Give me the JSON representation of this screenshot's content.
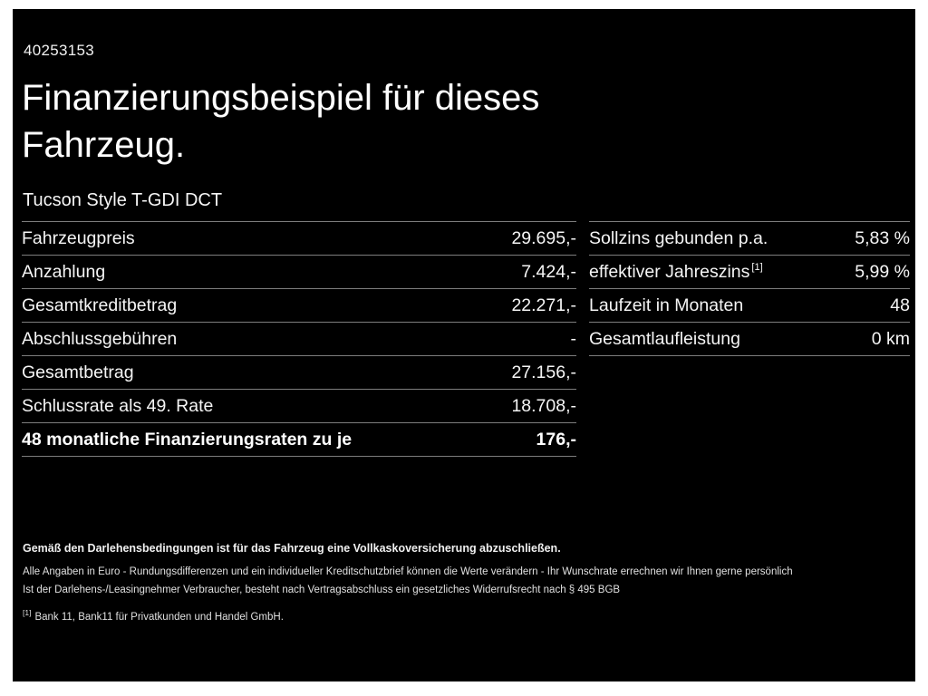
{
  "page": {
    "id_number": "40253153",
    "title_line1": "Finanzierungsbeispiel für dieses",
    "title_line2": "Fahrzeug.",
    "vehicle_model": "Tucson Style T-GDI DCT"
  },
  "left_table": {
    "rows": [
      {
        "label": "Fahrzeugpreis",
        "value": "29.695,-"
      },
      {
        "label": "Anzahlung",
        "value": "7.424,-"
      },
      {
        "label": "Gesamtkreditbetrag",
        "value": "22.271,-"
      },
      {
        "label": "Abschlussgebühren",
        "value": "-"
      },
      {
        "label": "Gesamtbetrag",
        "value": "27.156,-"
      },
      {
        "label": "Schlussrate als 49. Rate",
        "value": "18.708,-"
      },
      {
        "label": "48 monatliche Finanzierungsraten zu je",
        "value": "176,-"
      }
    ]
  },
  "right_table": {
    "rows": [
      {
        "label": "Sollzins gebunden p.a.",
        "value": "5,83 %"
      },
      {
        "label": "effektiver Jahreszins",
        "sup": "[1]",
        "value": "5,99 %"
      },
      {
        "label": "Laufzeit in Monaten",
        "value": "48"
      },
      {
        "label": "Gesamtlaufleistung",
        "value": "0 km"
      }
    ]
  },
  "footer": {
    "line1": "Gemäß den Darlehensbedingungen ist für das Fahrzeug eine Vollkaskoversicherung abzuschließen.",
    "line2": "Alle Angaben in Euro - Rundungsdifferenzen und ein individueller Kreditschutzbrief können die Werte verändern - Ihr Wunschrate errechnen wir Ihnen gerne persönlich",
    "line3": "Ist der Darlehens-/Leasingnehmer Verbraucher, besteht nach Vertragsabschluss ein gesetzliches Widerrufsrecht nach § 495 BGB",
    "footnote_marker": "[1]",
    "footnote_text": "Bank 11, Bank11 für Privatkunden und Handel GmbH."
  }
}
